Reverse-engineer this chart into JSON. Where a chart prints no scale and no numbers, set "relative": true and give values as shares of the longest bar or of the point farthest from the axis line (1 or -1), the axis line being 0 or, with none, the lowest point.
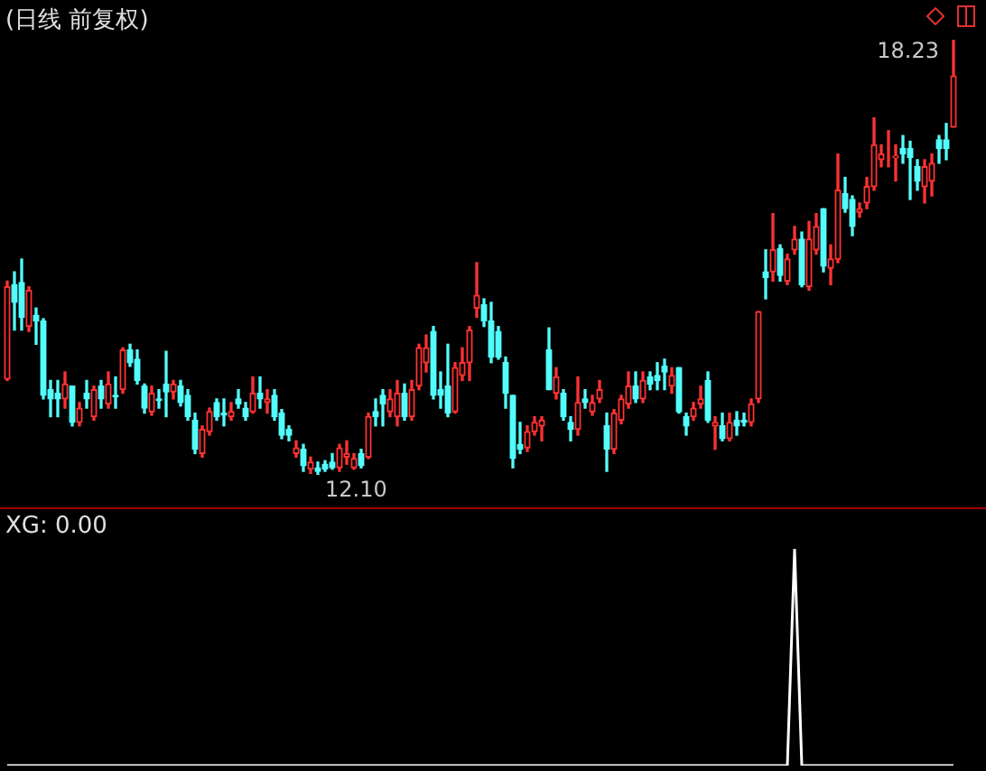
{
  "chart_data": [
    {
      "type": "candlestick",
      "title": "(日线 前复权)",
      "categories": [
        null,
        null,
        null,
        null,
        null,
        null,
        null,
        null,
        null,
        null,
        null,
        null,
        null,
        null,
        null,
        null,
        null,
        null,
        null,
        null,
        null,
        null,
        null,
        null,
        null,
        null,
        null,
        null,
        null,
        null,
        null,
        null,
        null,
        null,
        null,
        null,
        null,
        null,
        null,
        null,
        null,
        null,
        null,
        null,
        null,
        null,
        null,
        null,
        null,
        null,
        null,
        null,
        null,
        null,
        null,
        null,
        null,
        null,
        null,
        null,
        null,
        null,
        null,
        null,
        null,
        null,
        null,
        null,
        null,
        null,
        null,
        null,
        null,
        null,
        null,
        null,
        null,
        null,
        null,
        null,
        null,
        null,
        null,
        null,
        null,
        null,
        null,
        null,
        null,
        null,
        null,
        null,
        null,
        null,
        null,
        null,
        null,
        null,
        null,
        null,
        null,
        null,
        null,
        null,
        null,
        null,
        null,
        null,
        null,
        null,
        null,
        null,
        null,
        null,
        null,
        null,
        null,
        null,
        null,
        null,
        null,
        null,
        null,
        null,
        null,
        null,
        null,
        null,
        null,
        null,
        null,
        null
      ],
      "ohlc": [
        [
          13.45,
          14.83,
          13.43,
          14.75
        ],
        [
          14.78,
          14.96,
          14.14,
          14.53
        ],
        [
          14.81,
          15.14,
          14.14,
          14.32
        ],
        [
          14.19,
          14.75,
          14.12,
          14.7
        ],
        [
          14.35,
          14.45,
          13.94,
          14.27
        ],
        [
          14.27,
          14.3,
          13.17,
          13.22
        ],
        [
          13.3,
          13.43,
          12.92,
          13.17
        ],
        [
          13.25,
          13.43,
          12.92,
          13.17
        ],
        [
          13.17,
          13.55,
          13.04,
          13.38
        ],
        [
          13.35,
          13.35,
          12.79,
          12.84
        ],
        [
          12.84,
          13.12,
          12.79,
          13.04
        ],
        [
          13.25,
          13.43,
          13.04,
          13.17
        ],
        [
          12.92,
          13.35,
          12.87,
          13.3
        ],
        [
          13.35,
          13.43,
          13.04,
          13.17
        ],
        [
          13.1,
          13.55,
          13.04,
          13.38
        ],
        [
          13.22,
          13.48,
          13.04,
          13.2
        ],
        [
          13.3,
          13.89,
          13.25,
          13.86
        ],
        [
          13.86,
          13.94,
          13.63,
          13.68
        ],
        [
          13.73,
          13.86,
          13.38,
          13.43
        ],
        [
          13.35,
          13.38,
          12.97,
          13.04
        ],
        [
          12.99,
          13.35,
          12.94,
          13.25
        ],
        [
          13.17,
          13.3,
          13.04,
          13.15
        ],
        [
          13.38,
          13.84,
          12.92,
          13.27
        ],
        [
          13.27,
          13.43,
          13.17,
          13.38
        ],
        [
          13.35,
          13.43,
          13.07,
          13.12
        ],
        [
          13.22,
          13.3,
          12.87,
          12.92
        ],
        [
          12.87,
          12.97,
          12.4,
          12.46
        ],
        [
          12.4,
          12.79,
          12.35,
          12.74
        ],
        [
          12.71,
          13.04,
          12.66,
          12.99
        ],
        [
          13.12,
          13.17,
          12.87,
          12.92
        ],
        [
          12.97,
          13.17,
          12.79,
          12.94
        ],
        [
          12.92,
          13.12,
          12.87,
          12.99
        ],
        [
          13.17,
          13.3,
          13.04,
          13.1
        ],
        [
          13.04,
          13.12,
          12.87,
          12.92
        ],
        [
          12.99,
          13.48,
          12.97,
          13.25
        ],
        [
          13.25,
          13.48,
          13.04,
          13.17
        ],
        [
          13.12,
          13.3,
          12.97,
          13.17
        ],
        [
          13.22,
          13.3,
          12.87,
          12.92
        ],
        [
          12.97,
          13.02,
          12.61,
          12.66
        ],
        [
          12.74,
          12.79,
          12.58,
          12.66
        ],
        [
          12.4,
          12.58,
          12.35,
          12.48
        ],
        [
          12.46,
          12.53,
          12.15,
          12.23
        ],
        [
          12.18,
          12.35,
          12.12,
          12.28
        ],
        [
          12.2,
          12.28,
          12.1,
          12.15
        ],
        [
          12.25,
          12.3,
          12.15,
          12.18
        ],
        [
          12.28,
          12.4,
          12.18,
          12.2
        ],
        [
          12.2,
          12.53,
          12.15,
          12.48
        ],
        [
          12.35,
          12.58,
          12.25,
          12.4
        ],
        [
          12.2,
          12.4,
          12.18,
          12.33
        ],
        [
          12.4,
          12.46,
          12.2,
          12.23
        ],
        [
          12.35,
          12.97,
          12.33,
          12.92
        ],
        [
          12.99,
          13.17,
          12.79,
          12.92
        ],
        [
          13.22,
          13.3,
          12.79,
          13.1
        ],
        [
          12.99,
          13.3,
          12.92,
          13.17
        ],
        [
          12.92,
          13.43,
          12.79,
          13.25
        ],
        [
          13.25,
          13.38,
          12.87,
          12.92
        ],
        [
          12.92,
          13.43,
          12.87,
          13.3
        ],
        [
          13.35,
          13.94,
          13.3,
          13.89
        ],
        [
          13.68,
          14.07,
          13.55,
          13.89
        ],
        [
          14.12,
          14.19,
          13.17,
          13.22
        ],
        [
          13.3,
          13.55,
          13.04,
          13.22
        ],
        [
          13.35,
          13.94,
          12.92,
          12.97
        ],
        [
          12.99,
          13.68,
          12.97,
          13.61
        ],
        [
          13.5,
          13.89,
          13.43,
          13.68
        ],
        [
          13.68,
          14.19,
          13.43,
          14.14
        ],
        [
          14.45,
          15.09,
          14.32,
          14.63
        ],
        [
          14.5,
          14.58,
          14.19,
          14.27
        ],
        [
          14.27,
          14.53,
          13.68,
          13.76
        ],
        [
          14.12,
          14.19,
          13.73,
          13.76
        ],
        [
          13.68,
          13.76,
          13.04,
          13.25
        ],
        [
          13.22,
          13.22,
          12.2,
          12.33
        ],
        [
          12.53,
          12.84,
          12.4,
          12.46
        ],
        [
          12.48,
          12.79,
          12.43,
          12.71
        ],
        [
          12.71,
          12.92,
          12.66,
          12.84
        ],
        [
          12.79,
          12.92,
          12.58,
          12.87
        ],
        [
          13.86,
          14.17,
          13.3,
          13.3
        ],
        [
          13.25,
          13.61,
          13.17,
          13.48
        ],
        [
          13.25,
          13.3,
          12.87,
          12.92
        ],
        [
          12.84,
          12.92,
          12.58,
          12.74
        ],
        [
          12.74,
          13.48,
          12.66,
          13.12
        ],
        [
          13.17,
          13.3,
          13.04,
          13.12
        ],
        [
          12.99,
          13.22,
          12.94,
          13.12
        ],
        [
          13.17,
          13.43,
          13.12,
          13.3
        ],
        [
          12.79,
          12.97,
          12.15,
          12.46
        ],
        [
          12.46,
          13.02,
          12.4,
          12.97
        ],
        [
          12.87,
          13.22,
          12.82,
          13.17
        ],
        [
          13.1,
          13.55,
          13.04,
          13.35
        ],
        [
          13.35,
          13.55,
          13.12,
          13.17
        ],
        [
          13.17,
          13.55,
          13.12,
          13.43
        ],
        [
          13.48,
          13.55,
          13.3,
          13.38
        ],
        [
          13.5,
          13.68,
          13.3,
          13.43
        ],
        [
          13.63,
          13.73,
          13.3,
          13.55
        ],
        [
          13.35,
          13.61,
          13.25,
          13.5
        ],
        [
          13.61,
          13.61,
          12.97,
          12.99
        ],
        [
          12.92,
          12.97,
          12.66,
          12.79
        ],
        [
          12.92,
          13.12,
          12.87,
          13.04
        ],
        [
          13.1,
          13.35,
          13.04,
          13.17
        ],
        [
          13.43,
          13.55,
          12.84,
          12.87
        ],
        [
          12.79,
          12.92,
          12.46,
          12.84
        ],
        [
          12.79,
          12.97,
          12.58,
          12.61
        ],
        [
          12.61,
          12.97,
          12.58,
          12.84
        ],
        [
          12.87,
          12.99,
          12.66,
          12.79
        ],
        [
          12.87,
          12.97,
          12.79,
          12.84
        ],
        [
          12.84,
          13.17,
          12.79,
          13.1
        ],
        [
          13.17,
          14.4,
          13.12,
          14.4
        ],
        [
          14.96,
          15.27,
          14.58,
          14.88
        ],
        [
          14.96,
          15.78,
          14.83,
          15.27
        ],
        [
          15.29,
          15.34,
          14.83,
          14.91
        ],
        [
          14.83,
          15.21,
          14.78,
          15.14
        ],
        [
          15.27,
          15.6,
          15.21,
          15.42
        ],
        [
          15.42,
          15.52,
          14.75,
          14.78
        ],
        [
          14.75,
          15.67,
          14.7,
          15.42
        ],
        [
          15.27,
          15.78,
          15.21,
          15.6
        ],
        [
          15.85,
          15.85,
          14.96,
          15.04
        ],
        [
          15.01,
          15.34,
          14.78,
          15.14
        ],
        [
          15.14,
          16.62,
          15.09,
          16.11
        ],
        [
          16.06,
          16.29,
          15.8,
          15.85
        ],
        [
          15.98,
          16.03,
          15.47,
          15.6
        ],
        [
          15.8,
          15.93,
          15.73,
          15.85
        ],
        [
          15.93,
          16.29,
          15.85,
          16.16
        ],
        [
          16.16,
          17.13,
          16.11,
          16.75
        ],
        [
          16.54,
          16.75,
          16.44,
          16.62
        ],
        [
          16.57,
          16.95,
          16.44,
          16.57
        ],
        [
          16.57,
          16.75,
          16.24,
          16.59
        ],
        [
          16.7,
          16.88,
          16.49,
          16.62
        ],
        [
          16.7,
          16.8,
          15.98,
          16.57
        ],
        [
          16.44,
          16.54,
          16.11,
          16.24
        ],
        [
          16.16,
          16.54,
          15.93,
          16.44
        ],
        [
          16.24,
          16.62,
          16.03,
          16.49
        ],
        [
          16.82,
          16.88,
          16.49,
          16.7
        ],
        [
          16.82,
          17.05,
          16.54,
          16.7
        ],
        [
          17.0,
          18.23,
          17.0,
          17.72
        ]
      ],
      "annotations": [
        "12.10",
        "18.23"
      ]
    },
    {
      "type": "line",
      "title": "XG: 0.00",
      "relative": true,
      "marker": "none",
      "categories": [
        null,
        null,
        null,
        null,
        null,
        null,
        null,
        null,
        null,
        null,
        null,
        null,
        null,
        null,
        null,
        null,
        null,
        null,
        null,
        null,
        null,
        null,
        null,
        null,
        null,
        null,
        null,
        null,
        null,
        null,
        null,
        null,
        null,
        null,
        null,
        null,
        null,
        null,
        null,
        null,
        null,
        null,
        null,
        null,
        null,
        null,
        null,
        null,
        null,
        null,
        null,
        null,
        null,
        null,
        null,
        null,
        null,
        null,
        null,
        null,
        null,
        null,
        null,
        null,
        null,
        null,
        null,
        null,
        null,
        null,
        null,
        null,
        null,
        null,
        null,
        null,
        null,
        null,
        null,
        null,
        null,
        null,
        null,
        null,
        null,
        null,
        null,
        null,
        null,
        null,
        null,
        null,
        null,
        null,
        null,
        null,
        null,
        null,
        null,
        null,
        null,
        null,
        null,
        null,
        null,
        null,
        null,
        null,
        null,
        null,
        null,
        null,
        null,
        null,
        null,
        null,
        null,
        null,
        null,
        null,
        null,
        null,
        null,
        null,
        null,
        null,
        null,
        null,
        null,
        null,
        null,
        null
      ],
      "series": [
        {
          "color": "#ffffff",
          "values": [
            0,
            0,
            0,
            0,
            0,
            0,
            0,
            0,
            0,
            0,
            0,
            0,
            0,
            0,
            0,
            0,
            0,
            0,
            0,
            0,
            0,
            0,
            0,
            0,
            0,
            0,
            0,
            0,
            0,
            0,
            0,
            0,
            0,
            0,
            0,
            0,
            0,
            0,
            0,
            0,
            0,
            0,
            0,
            0,
            0,
            0,
            0,
            0,
            0,
            0,
            0,
            0,
            0,
            0,
            0,
            0,
            0,
            0,
            0,
            0,
            0,
            0,
            0,
            0,
            0,
            0,
            0,
            0,
            0,
            0,
            0,
            0,
            0,
            0,
            0,
            0,
            0,
            0,
            0,
            0,
            0,
            0,
            0,
            0,
            0,
            0,
            0,
            0,
            0,
            0,
            0,
            0,
            0,
            0,
            0,
            0,
            0,
            0,
            0,
            0,
            0,
            0,
            0,
            0,
            0,
            0,
            0,
            0,
            0,
            1,
            0,
            0,
            0,
            0,
            0,
            0,
            0,
            0,
            0,
            0,
            0,
            0,
            0,
            0,
            0,
            0,
            0,
            0,
            0,
            0,
            0,
            0
          ]
        }
      ]
    }
  ]
}
